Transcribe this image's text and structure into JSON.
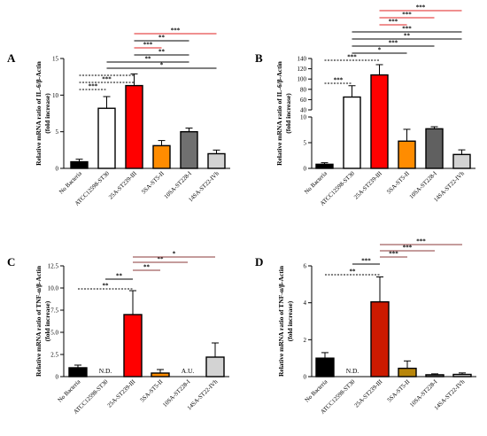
{
  "chart_data": [
    {
      "panel": "A",
      "type": "bar",
      "ylabel": [
        "Relative mRNA ratio of IL-6/β-Actin",
        "(fold increase)"
      ],
      "ylim": [
        0,
        15
      ],
      "yticks": [
        0,
        5,
        10,
        15
      ],
      "categories": [
        "No Bacteria",
        "ATCC12598-ST30",
        "25A-ST239-III",
        "5SA-ST5-II",
        "10SA-ST228-I",
        "14SA-ST22-IVh"
      ],
      "values": [
        0.9,
        8.2,
        11.3,
        3.1,
        5.0,
        2.0
      ],
      "errors": [
        0.35,
        1.6,
        1.6,
        0.7,
        0.5,
        0.5
      ],
      "bar_colors": [
        "#000000",
        "#ffffff",
        "#ff0000",
        "#ff8c00",
        "#707070",
        "#d3d3d3"
      ],
      "value_labels": [
        "",
        "",
        "",
        "",
        "",
        ""
      ],
      "comparisons": [
        {
          "from": 0,
          "to": 1,
          "label": "***",
          "style": "dotted",
          "color": "#000000"
        },
        {
          "from": 0,
          "to": 2,
          "label": "***",
          "style": "dotted",
          "color": "#000000"
        },
        {
          "from": 0,
          "to": 2,
          "label": "",
          "style": "dotted",
          "color": "#000000"
        },
        {
          "from": 1,
          "to": 5,
          "label": "*",
          "style": "solid",
          "color": "#000000"
        },
        {
          "from": 1,
          "to": 4,
          "label": "**",
          "style": "solid",
          "color": "#000000"
        },
        {
          "from": 2,
          "to": 4,
          "label": "**",
          "style": "solid",
          "color": "#000000"
        },
        {
          "from": 2,
          "to": 3,
          "label": "***",
          "style": "solid",
          "color": "#e02020"
        },
        {
          "from": 2,
          "to": 4,
          "label": "**",
          "style": "solid",
          "color": "#000000"
        },
        {
          "from": 2,
          "to": 5,
          "label": "***",
          "style": "solid",
          "color": "#e02020"
        }
      ]
    },
    {
      "panel": "B",
      "type": "bar",
      "ylabel": [
        "Relative mRNA ratio of IL-6/β-Actin",
        "(fold increase)"
      ],
      "broken_axis": true,
      "ylim_lower": [
        0,
        10
      ],
      "ylim_upper": [
        40,
        140
      ],
      "yticks_lower": [
        0,
        5,
        10
      ],
      "yticks_upper": [
        40,
        60,
        80,
        100,
        120,
        140
      ],
      "categories": [
        "No Bacteria",
        "ATCC12598-ST30",
        "25A-ST239-III",
        "5SA-ST5-II",
        "10SA-ST228-I",
        "14SA-ST22-IVh"
      ],
      "values": [
        0.8,
        65,
        108,
        5.3,
        7.7,
        2.7
      ],
      "errors": [
        0.3,
        22,
        20,
        2.3,
        0.4,
        0.9
      ],
      "bar_colors": [
        "#000000",
        "#ffffff",
        "#ff0000",
        "#ff8c00",
        "#606060",
        "#d3d3d3"
      ],
      "value_labels": [
        "",
        "",
        "",
        "",
        "",
        ""
      ],
      "comparisons": [
        {
          "from": 0,
          "to": 1,
          "label": "***",
          "style": "dotted",
          "color": "#000000"
        },
        {
          "from": 0,
          "to": 2,
          "label": "***",
          "style": "dotted",
          "color": "#000000"
        },
        {
          "from": 1,
          "to": 3,
          "label": "*",
          "style": "solid",
          "color": "#000000"
        },
        {
          "from": 1,
          "to": 4,
          "label": "***",
          "style": "solid",
          "color": "#000000"
        },
        {
          "from": 1,
          "to": 5,
          "label": "**",
          "style": "solid",
          "color": "#000000"
        },
        {
          "from": 1,
          "to": 5,
          "label": "***",
          "style": "solid",
          "color": "#000000"
        },
        {
          "from": 2,
          "to": 3,
          "label": "***",
          "style": "solid",
          "color": "#e02020"
        },
        {
          "from": 2,
          "to": 4,
          "label": "***",
          "style": "solid",
          "color": "#e02020"
        },
        {
          "from": 2,
          "to": 5,
          "label": "***",
          "style": "solid",
          "color": "#e02020"
        }
      ]
    },
    {
      "panel": "C",
      "type": "bar",
      "ylabel": [
        "Relative mRNA ratio of TNF-α/β-Actin",
        "(fold increase)"
      ],
      "ylim": [
        0,
        12.5
      ],
      "yticks": [
        0,
        2.5,
        5.0,
        7.5,
        10.0,
        12.5
      ],
      "ytick_labels": [
        "0",
        "2.5",
        "5.0",
        "7.5",
        "10.0",
        "12.5"
      ],
      "categories": [
        "No Bacteria",
        "ATCC12598-ST30",
        "25A-ST239-III",
        "5SA-ST5-II",
        "10SA-ST228-I",
        "14SA-ST22-IVh"
      ],
      "values": [
        1.0,
        0,
        7.0,
        0.4,
        0,
        2.2
      ],
      "errors": [
        0.3,
        0,
        2.7,
        0.4,
        0,
        1.6
      ],
      "bar_colors": [
        "#000000",
        "#ffffff",
        "#ff0000",
        "#ff8c00",
        "#707070",
        "#d3d3d3"
      ],
      "value_labels": [
        "",
        "N.D.",
        "",
        "",
        "A.U.",
        ""
      ],
      "comparisons": [
        {
          "from": 0,
          "to": 2,
          "label": "**",
          "style": "dotted",
          "color": "#000000"
        },
        {
          "from": 1,
          "to": 2,
          "label": "**",
          "style": "solid",
          "color": "#000000"
        },
        {
          "from": 2,
          "to": 3,
          "label": "**",
          "style": "solid",
          "color": "#8b3a3a"
        },
        {
          "from": 2,
          "to": 4,
          "label": "**",
          "style": "solid",
          "color": "#8b3a3a"
        },
        {
          "from": 2,
          "to": 5,
          "label": "*",
          "style": "solid",
          "color": "#8b3a3a"
        }
      ]
    },
    {
      "panel": "D",
      "type": "bar",
      "ylabel": [
        "Relative mRNA ratio of TNF-α/β-Actin",
        "(fold increase)"
      ],
      "ylim": [
        0,
        6
      ],
      "yticks": [
        0,
        2,
        4,
        6
      ],
      "categories": [
        "No Bacteria",
        "ATCC12598-ST30",
        "25A-ST239-III",
        "5SA-ST5-II",
        "10SA-ST228-I",
        "14SA-ST22-IVh"
      ],
      "values": [
        1.0,
        0,
        4.05,
        0.45,
        0.1,
        0.12
      ],
      "errors": [
        0.3,
        0,
        1.35,
        0.4,
        0.05,
        0.08
      ],
      "bar_colors": [
        "#000000",
        "#ffffff",
        "#cc1a00",
        "#b8860b",
        "#707070",
        "#d3d3d3"
      ],
      "value_labels": [
        "",
        "N.D.",
        "",
        "",
        "",
        ""
      ],
      "comparisons": [
        {
          "from": 0,
          "to": 2,
          "label": "**",
          "style": "dotted",
          "color": "#000000"
        },
        {
          "from": 1,
          "to": 2,
          "label": "***",
          "style": "solid",
          "color": "#000000"
        },
        {
          "from": 2,
          "to": 3,
          "label": "***",
          "style": "solid",
          "color": "#8b3a3a"
        },
        {
          "from": 2,
          "to": 4,
          "label": "***",
          "style": "solid",
          "color": "#8b3a3a"
        },
        {
          "from": 2,
          "to": 5,
          "label": "***",
          "style": "solid",
          "color": "#8b3a3a"
        }
      ]
    }
  ]
}
